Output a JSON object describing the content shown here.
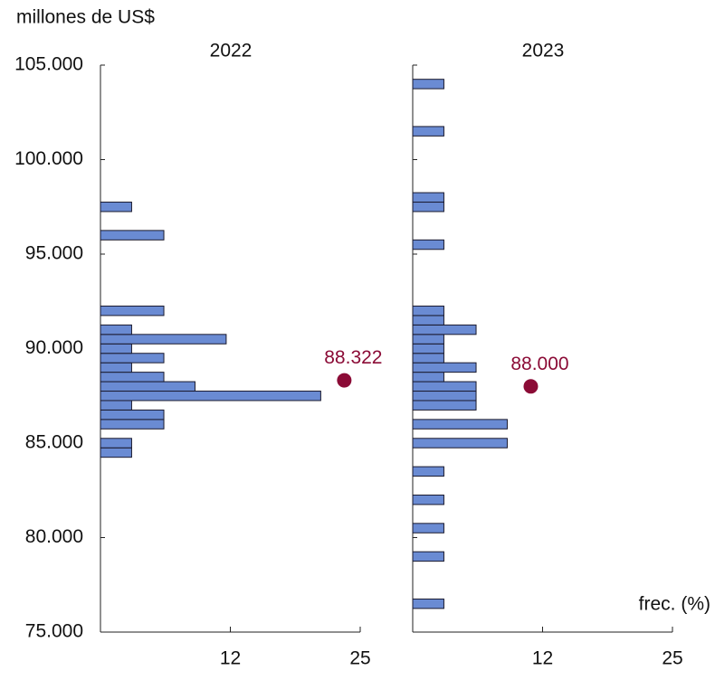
{
  "chart_data": [
    {
      "type": "histogram",
      "title": "2022",
      "ylabel": "millones de US$",
      "orientation": "horizontal",
      "bins": [
        84250,
        84750,
        85250,
        85750,
        86250,
        86750,
        87250,
        87750,
        88250,
        88750,
        89250,
        89750,
        90250,
        90750,
        91250,
        91750,
        92250,
        92750,
        93250,
        93750,
        94250,
        94750,
        95250,
        95750,
        96250,
        96750,
        97250,
        97750
      ],
      "values": [
        3.0,
        3.0,
        0,
        6.1,
        6.1,
        3.0,
        21.2,
        9.1,
        6.1,
        3.0,
        6.1,
        3.0,
        12.1,
        3.0,
        0,
        6.1,
        0,
        0,
        0,
        0,
        0,
        0,
        0,
        6.1,
        0,
        0,
        3.0
      ],
      "color": "#6a8bd3",
      "ylim": [
        75000,
        105000
      ],
      "yticks": [
        {
          "value": 75000,
          "label": "75.000"
        },
        {
          "value": 80000,
          "label": "80.000"
        },
        {
          "value": 85000,
          "label": "85.000"
        },
        {
          "value": 90000,
          "label": "90.000"
        },
        {
          "value": 95000,
          "label": "95.000"
        },
        {
          "value": 100000,
          "label": "100.000"
        },
        {
          "value": 105000,
          "label": "105.000"
        }
      ],
      "xlim": [
        0,
        25
      ],
      "xticks": [
        {
          "value": 12.5,
          "label": "12"
        },
        25
      ],
      "marker": {
        "value": 88322,
        "label": "88.322",
        "color": "#8b0b36"
      }
    },
    {
      "type": "histogram",
      "title": "2023",
      "xlabel": "frec. (%)",
      "orientation": "horizontal",
      "bins": [
        76250,
        76750,
        77250,
        77750,
        78250,
        78750,
        79250,
        79750,
        80250,
        80750,
        81250,
        81750,
        82250,
        82750,
        83250,
        83750,
        84250,
        84750,
        85250,
        85750,
        86250,
        86750,
        87250,
        87750,
        88250,
        88750,
        89250,
        89750,
        90250,
        90750,
        91250,
        91750,
        92250,
        92750,
        93250,
        93750,
        94250,
        94750,
        95250,
        95750,
        96250,
        96750,
        97250,
        97750,
        98250,
        98750,
        99250,
        99750,
        100250,
        100750,
        101250,
        101750,
        102250,
        102750,
        103250,
        103750,
        104250
      ],
      "values": [
        3.0,
        0,
        0,
        0,
        0,
        3.0,
        0,
        0,
        3.0,
        0,
        0,
        3.0,
        0,
        0,
        3.0,
        0,
        0,
        9.1,
        0,
        9.1,
        0,
        6.1,
        6.1,
        6.1,
        3.0,
        6.1,
        3.0,
        3.0,
        3.0,
        6.1,
        3.0,
        3.0,
        0,
        0,
        0,
        0,
        0,
        0,
        3.0,
        0,
        0,
        0,
        3.0,
        3.0,
        0,
        0,
        0,
        0,
        0,
        0,
        3.0,
        0,
        0,
        0,
        0,
        3.0
      ],
      "color": "#6a8bd3",
      "ylim": [
        75000,
        105000
      ],
      "xlim": [
        0,
        25
      ],
      "xticks": [
        {
          "value": 12.5,
          "label": "12"
        },
        25
      ],
      "marker": {
        "value": 88000,
        "label": "88.000",
        "color": "#8b0b36"
      }
    }
  ]
}
